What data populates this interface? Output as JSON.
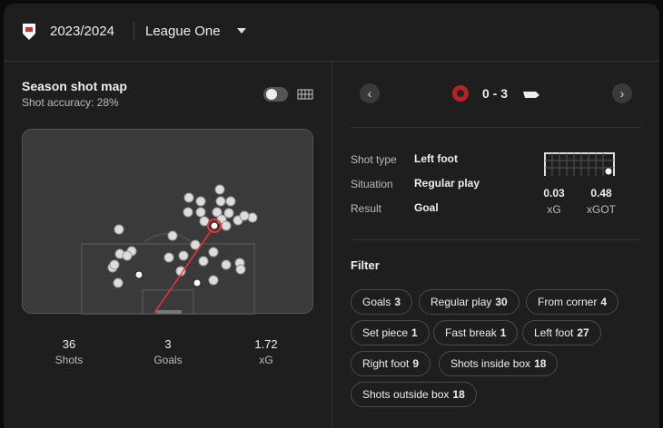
{
  "header": {
    "season": "2023/2024",
    "league": "League One"
  },
  "shot_map": {
    "title": "Season shot map",
    "subtitle": "Shot accuracy: 28%",
    "stats": [
      {
        "value": 36,
        "label": "Shots"
      },
      {
        "value": 3,
        "label": "Goals"
      },
      {
        "value": 1.72,
        "label": "xG"
      }
    ]
  },
  "match": {
    "score": "0 - 3"
  },
  "shot_details": {
    "rows": [
      [
        "Shot type",
        "Left foot"
      ],
      [
        "Situation",
        "Regular play"
      ],
      [
        "Result",
        "Goal"
      ]
    ],
    "xg": [
      {
        "value": 0.03,
        "label": "xG"
      },
      {
        "value": 0.48,
        "label": "xGOT"
      }
    ]
  },
  "filter": {
    "title": "Filter",
    "chips": [
      [
        "Goals",
        3
      ],
      [
        "Regular play",
        30
      ],
      [
        "From corner",
        4
      ],
      [
        "Set piece",
        1
      ],
      [
        "Fast break",
        1
      ],
      [
        "Left foot",
        27
      ],
      [
        "Right foot",
        9
      ],
      [
        "Shots inside box",
        18
      ],
      [
        "Shots outside box",
        18
      ]
    ]
  }
}
